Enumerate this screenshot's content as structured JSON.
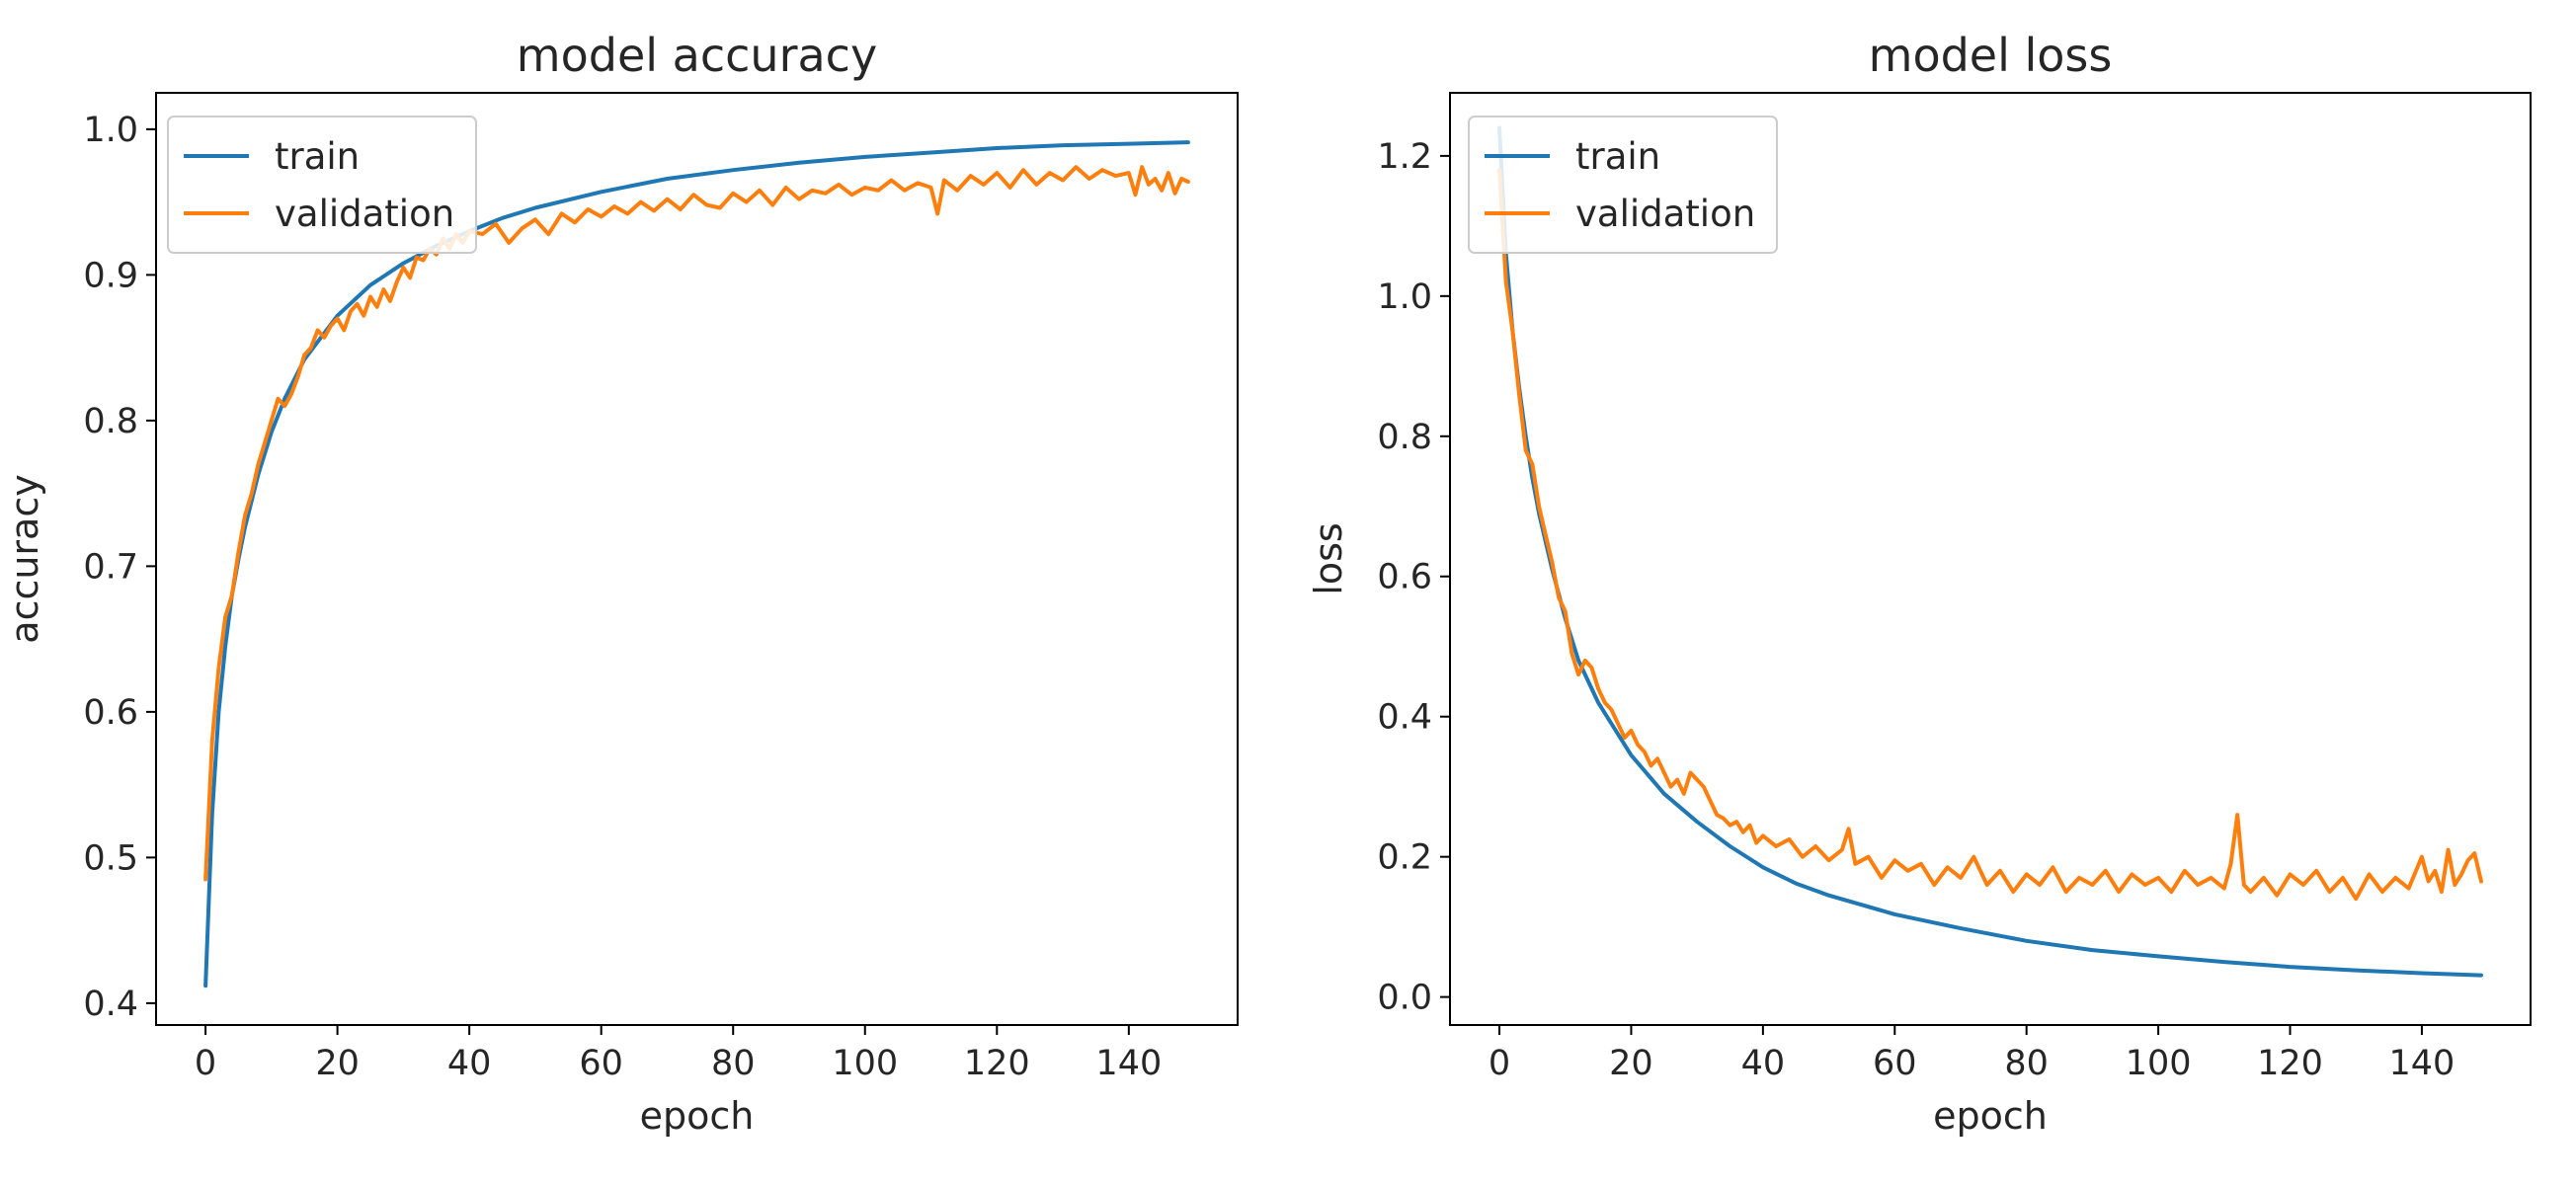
{
  "figure": {
    "colors": {
      "train": "#1f77b4",
      "validation": "#ff7f0e",
      "axes": "#000000",
      "legend_border": "#cccccc"
    }
  },
  "chart_data": [
    {
      "type": "line",
      "title": "model accuracy",
      "xlabel": "epoch",
      "ylabel": "accuracy",
      "xlim": [
        -7.5,
        156.5
      ],
      "ylim": [
        0.385,
        1.025
      ],
      "xticks": [
        0,
        20,
        40,
        60,
        80,
        100,
        120,
        140
      ],
      "xtick_labels": [
        "0",
        "20",
        "40",
        "60",
        "80",
        "100",
        "120",
        "140"
      ],
      "yticks": [
        0.4,
        0.5,
        0.6,
        0.7,
        0.8,
        0.9,
        1.0
      ],
      "ytick_labels": [
        "0.4",
        "0.5",
        "0.6",
        "0.7",
        "0.8",
        "0.9",
        "1.0"
      ],
      "legend": {
        "location": "upper left",
        "entries": [
          "train",
          "validation"
        ]
      },
      "series": [
        {
          "name": "train",
          "color": "#1f77b4",
          "x": [
            0,
            1,
            2,
            3,
            4,
            5,
            6,
            8,
            10,
            12,
            15,
            20,
            25,
            30,
            35,
            40,
            45,
            50,
            60,
            70,
            80,
            90,
            100,
            110,
            120,
            130,
            140,
            149
          ],
          "y": [
            0.412,
            0.53,
            0.6,
            0.645,
            0.68,
            0.705,
            0.727,
            0.763,
            0.792,
            0.815,
            0.842,
            0.872,
            0.893,
            0.908,
            0.92,
            0.93,
            0.939,
            0.946,
            0.957,
            0.966,
            0.972,
            0.977,
            0.981,
            0.984,
            0.987,
            0.989,
            0.99,
            0.991
          ]
        },
        {
          "name": "validation",
          "color": "#ff7f0e",
          "x": [
            0,
            1,
            2,
            3,
            4,
            5,
            6,
            7,
            8,
            9,
            10,
            11,
            12,
            13,
            14,
            15,
            16,
            17,
            18,
            19,
            20,
            21,
            22,
            23,
            24,
            25,
            26,
            27,
            28,
            29,
            30,
            31,
            32,
            33,
            34,
            35,
            36,
            37,
            38,
            39,
            40,
            42,
            44,
            46,
            48,
            50,
            52,
            54,
            56,
            58,
            60,
            62,
            64,
            66,
            68,
            70,
            72,
            74,
            76,
            78,
            80,
            82,
            84,
            86,
            88,
            90,
            92,
            94,
            96,
            98,
            100,
            102,
            104,
            106,
            108,
            110,
            111,
            112,
            114,
            116,
            118,
            120,
            122,
            124,
            126,
            128,
            130,
            132,
            134,
            136,
            138,
            140,
            141,
            142,
            143,
            144,
            145,
            146,
            147,
            148,
            149
          ],
          "y": [
            0.485,
            0.58,
            0.63,
            0.665,
            0.68,
            0.71,
            0.735,
            0.75,
            0.77,
            0.785,
            0.8,
            0.815,
            0.81,
            0.818,
            0.83,
            0.845,
            0.85,
            0.862,
            0.857,
            0.865,
            0.87,
            0.862,
            0.875,
            0.88,
            0.872,
            0.885,
            0.878,
            0.89,
            0.882,
            0.895,
            0.905,
            0.898,
            0.912,
            0.91,
            0.918,
            0.914,
            0.925,
            0.918,
            0.928,
            0.922,
            0.93,
            0.928,
            0.935,
            0.922,
            0.932,
            0.938,
            0.928,
            0.942,
            0.936,
            0.945,
            0.94,
            0.947,
            0.942,
            0.95,
            0.944,
            0.952,
            0.945,
            0.955,
            0.948,
            0.946,
            0.956,
            0.95,
            0.958,
            0.948,
            0.96,
            0.952,
            0.958,
            0.956,
            0.962,
            0.955,
            0.96,
            0.958,
            0.965,
            0.958,
            0.963,
            0.96,
            0.942,
            0.965,
            0.958,
            0.968,
            0.962,
            0.97,
            0.96,
            0.972,
            0.962,
            0.97,
            0.965,
            0.974,
            0.966,
            0.972,
            0.968,
            0.97,
            0.955,
            0.974,
            0.962,
            0.966,
            0.958,
            0.97,
            0.956,
            0.966,
            0.964
          ]
        }
      ]
    },
    {
      "type": "line",
      "title": "model loss",
      "xlabel": "epoch",
      "ylabel": "loss",
      "xlim": [
        -7.5,
        156.5
      ],
      "ylim": [
        -0.04,
        1.29
      ],
      "xticks": [
        0,
        20,
        40,
        60,
        80,
        100,
        120,
        140
      ],
      "xtick_labels": [
        "0",
        "20",
        "40",
        "60",
        "80",
        "100",
        "120",
        "140"
      ],
      "yticks": [
        0.0,
        0.2,
        0.4,
        0.6,
        0.8,
        1.0,
        1.2
      ],
      "ytick_labels": [
        "0.0",
        "0.2",
        "0.4",
        "0.6",
        "0.8",
        "1.0",
        "1.2"
      ],
      "legend": {
        "location": "upper left",
        "entries": [
          "train",
          "validation"
        ]
      },
      "series": [
        {
          "name": "train",
          "color": "#1f77b4",
          "x": [
            0,
            1,
            2,
            3,
            4,
            5,
            6,
            8,
            10,
            12,
            15,
            20,
            25,
            30,
            35,
            40,
            45,
            50,
            60,
            70,
            80,
            90,
            100,
            110,
            120,
            130,
            140,
            149
          ],
          "y": [
            1.24,
            1.06,
            0.95,
            0.87,
            0.8,
            0.74,
            0.69,
            0.61,
            0.54,
            0.48,
            0.42,
            0.345,
            0.29,
            0.25,
            0.215,
            0.185,
            0.162,
            0.145,
            0.118,
            0.098,
            0.08,
            0.067,
            0.058,
            0.05,
            0.043,
            0.038,
            0.034,
            0.031
          ]
        },
        {
          "name": "validation",
          "color": "#ff7f0e",
          "x": [
            0,
            1,
            2,
            3,
            4,
            5,
            6,
            7,
            8,
            9,
            10,
            11,
            12,
            13,
            14,
            15,
            16,
            17,
            18,
            19,
            20,
            21,
            22,
            23,
            24,
            25,
            26,
            27,
            28,
            29,
            30,
            31,
            32,
            33,
            34,
            35,
            36,
            37,
            38,
            39,
            40,
            42,
            44,
            46,
            48,
            50,
            52,
            53,
            54,
            56,
            58,
            60,
            62,
            64,
            66,
            68,
            70,
            72,
            74,
            76,
            78,
            80,
            82,
            84,
            86,
            88,
            90,
            92,
            94,
            96,
            98,
            100,
            102,
            104,
            106,
            108,
            110,
            111,
            112,
            113,
            114,
            116,
            118,
            120,
            122,
            124,
            126,
            128,
            130,
            132,
            134,
            136,
            138,
            140,
            141,
            142,
            143,
            144,
            145,
            146,
            147,
            148,
            149
          ],
          "y": [
            1.18,
            1.02,
            0.95,
            0.86,
            0.78,
            0.76,
            0.7,
            0.66,
            0.62,
            0.57,
            0.55,
            0.49,
            0.46,
            0.48,
            0.47,
            0.44,
            0.42,
            0.41,
            0.39,
            0.37,
            0.38,
            0.36,
            0.35,
            0.33,
            0.34,
            0.32,
            0.3,
            0.31,
            0.29,
            0.32,
            0.31,
            0.3,
            0.28,
            0.26,
            0.255,
            0.245,
            0.25,
            0.235,
            0.245,
            0.22,
            0.23,
            0.215,
            0.225,
            0.2,
            0.215,
            0.195,
            0.21,
            0.24,
            0.19,
            0.2,
            0.17,
            0.195,
            0.18,
            0.19,
            0.16,
            0.185,
            0.17,
            0.2,
            0.16,
            0.18,
            0.15,
            0.175,
            0.16,
            0.185,
            0.15,
            0.17,
            0.16,
            0.18,
            0.15,
            0.175,
            0.16,
            0.17,
            0.15,
            0.18,
            0.16,
            0.17,
            0.155,
            0.19,
            0.26,
            0.16,
            0.15,
            0.17,
            0.145,
            0.175,
            0.16,
            0.18,
            0.15,
            0.17,
            0.14,
            0.175,
            0.15,
            0.17,
            0.155,
            0.2,
            0.165,
            0.18,
            0.15,
            0.21,
            0.16,
            0.175,
            0.195,
            0.205,
            0.165
          ]
        }
      ]
    }
  ]
}
